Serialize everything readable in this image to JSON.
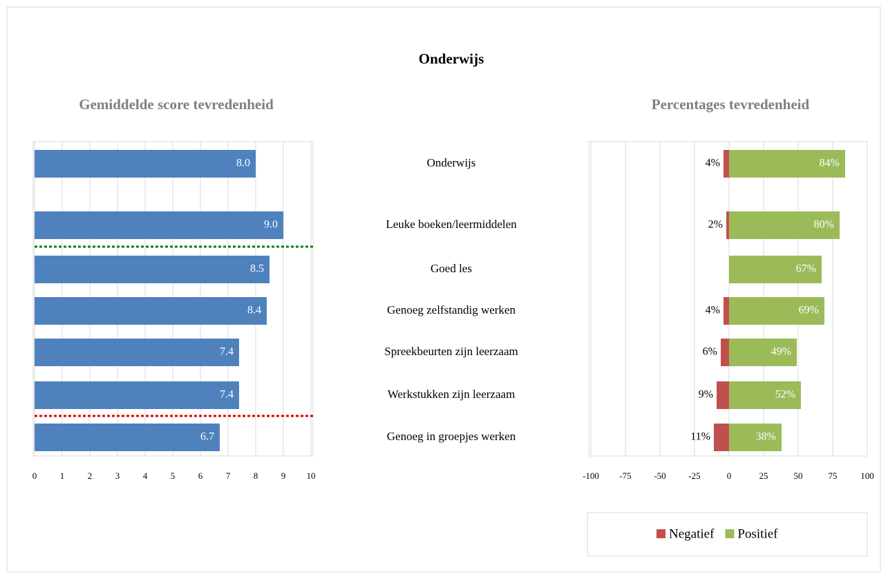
{
  "title": "Onderwijs",
  "chart_data": [
    {
      "type": "bar",
      "orientation": "horizontal",
      "title": "Gemiddelde score tevredenheid",
      "categories": [
        "Onderwijs",
        "Leuke boeken/leermiddelen",
        "Goed les",
        "Genoeg zelfstandig werken",
        "Spreekbeurten zijn leerzaam",
        "Werkstukken zijn leerzaam",
        "Genoeg in groepjes werken"
      ],
      "values": [
        8.0,
        9.0,
        8.5,
        8.4,
        7.4,
        7.4,
        6.7
      ],
      "value_labels": [
        "8.0",
        "9.0",
        "8.5",
        "8.4",
        "7.4",
        "7.4",
        "6.7"
      ],
      "color": "#4f81bd",
      "xlim": [
        0,
        10
      ],
      "xticks": [
        0,
        1,
        2,
        3,
        4,
        5,
        6,
        7,
        8,
        9,
        10
      ],
      "grid": true
    },
    {
      "type": "bar",
      "orientation": "horizontal",
      "title": "Percentages tevredenheid",
      "series": [
        {
          "name": "Negatief",
          "color": "#c0504d",
          "values": [
            -4,
            -2,
            null,
            -4,
            -6,
            -9,
            -11
          ],
          "value_labels": [
            "4%",
            "2%",
            null,
            "4%",
            "6%",
            "9%",
            "11%"
          ]
        },
        {
          "name": "Positief",
          "color": "#9bbb59",
          "values": [
            84,
            80,
            67,
            69,
            49,
            52,
            38
          ],
          "value_labels": [
            "84%",
            "80%",
            "67%",
            "69%",
            "49%",
            "52%",
            "38%"
          ]
        }
      ],
      "xlim": [
        -100,
        100
      ],
      "xticks": [
        -100,
        -75,
        -50,
        -25,
        0,
        25,
        50,
        75,
        100
      ],
      "grid": true,
      "legend": "bottom"
    }
  ]
}
